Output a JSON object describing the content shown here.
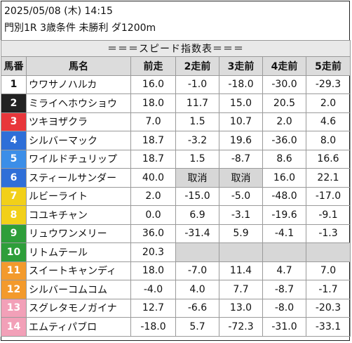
{
  "header": {
    "datetime": "2025/05/08 (木) 14:15",
    "race": "門別1R 3歳条件 未勝利 ダ1200m"
  },
  "table": {
    "title": "＝＝＝スピード指数表＝＝＝",
    "columns": [
      "馬番",
      "馬名",
      "前走",
      "2走前",
      "3走前",
      "4走前",
      "5走前"
    ],
    "rows": [
      {
        "num": "1",
        "color": "#ffffff",
        "text": "#111111",
        "name": "ウワサノハルカ",
        "vals": [
          "16.0",
          "-1.0",
          "-18.0",
          "-30.0",
          "-29.3"
        ]
      },
      {
        "num": "2",
        "color": "#222222",
        "text": "#ffffff",
        "name": "ミライヘホウショウ",
        "vals": [
          "18.0",
          "11.7",
          "15.0",
          "20.5",
          "2.0"
        ]
      },
      {
        "num": "3",
        "color": "#e8363b",
        "text": "#ffffff",
        "name": "ツキヨザクラ",
        "vals": [
          "7.0",
          "1.5",
          "10.7",
          "2.0",
          "4.6"
        ]
      },
      {
        "num": "4",
        "color": "#2e6fd8",
        "text": "#ffffff",
        "name": "シルバーマック",
        "vals": [
          "18.7",
          "-3.2",
          "19.6",
          "-36.0",
          "8.0"
        ]
      },
      {
        "num": "5",
        "color": "#3b8ee8",
        "text": "#ffffff",
        "name": "ワイルドチュリップ",
        "vals": [
          "18.7",
          "1.5",
          "-8.7",
          "8.6",
          "16.6"
        ]
      },
      {
        "num": "6",
        "color": "#2f6fd8",
        "text": "#ffffff",
        "name": "スティールサンダー",
        "vals": [
          "40.0",
          "取消",
          "取消",
          "16.0",
          "22.1"
        ],
        "gray": [
          1,
          2
        ]
      },
      {
        "num": "7",
        "color": "#f2d019",
        "text": "#ffffff",
        "name": "ルビーライト",
        "vals": [
          "2.0",
          "-15.0",
          "-5.0",
          "-48.0",
          "-17.0"
        ]
      },
      {
        "num": "8",
        "color": "#f2d019",
        "text": "#ffffff",
        "name": "コユキチャン",
        "vals": [
          "0.0",
          "6.9",
          "-3.1",
          "-19.6",
          "-9.1"
        ]
      },
      {
        "num": "9",
        "color": "#2e9e3a",
        "text": "#ffffff",
        "name": "リュウワンメリー",
        "vals": [
          "36.0",
          "-31.4",
          "5.9",
          "-4.1",
          "-1.3"
        ]
      },
      {
        "num": "10",
        "color": "#2e9e3a",
        "text": "#ffffff",
        "name": "リトムテール",
        "vals": [
          "20.3",
          "",
          "",
          "",
          ""
        ],
        "gray": [
          1,
          2,
          3,
          4
        ]
      },
      {
        "num": "11",
        "color": "#f39a2c",
        "text": "#ffffff",
        "name": "スイートキャンディ",
        "vals": [
          "18.0",
          "-7.0",
          "11.4",
          "4.7",
          "7.0"
        ]
      },
      {
        "num": "12",
        "color": "#f39a2c",
        "text": "#ffffff",
        "name": "シルバーコムコム",
        "vals": [
          "-4.0",
          "4.0",
          "7.7",
          "-8.7",
          "-1.7"
        ]
      },
      {
        "num": "13",
        "color": "#f2a0b8",
        "text": "#ffffff",
        "name": "スグレタモノガイナ",
        "vals": [
          "12.7",
          "-6.6",
          "13.0",
          "-8.0",
          "-20.3"
        ]
      },
      {
        "num": "14",
        "color": "#f2a0b8",
        "text": "#ffffff",
        "name": "エムティパブロ",
        "vals": [
          "-18.0",
          "5.7",
          "-72.3",
          "-31.0",
          "-33.1"
        ]
      }
    ]
  }
}
